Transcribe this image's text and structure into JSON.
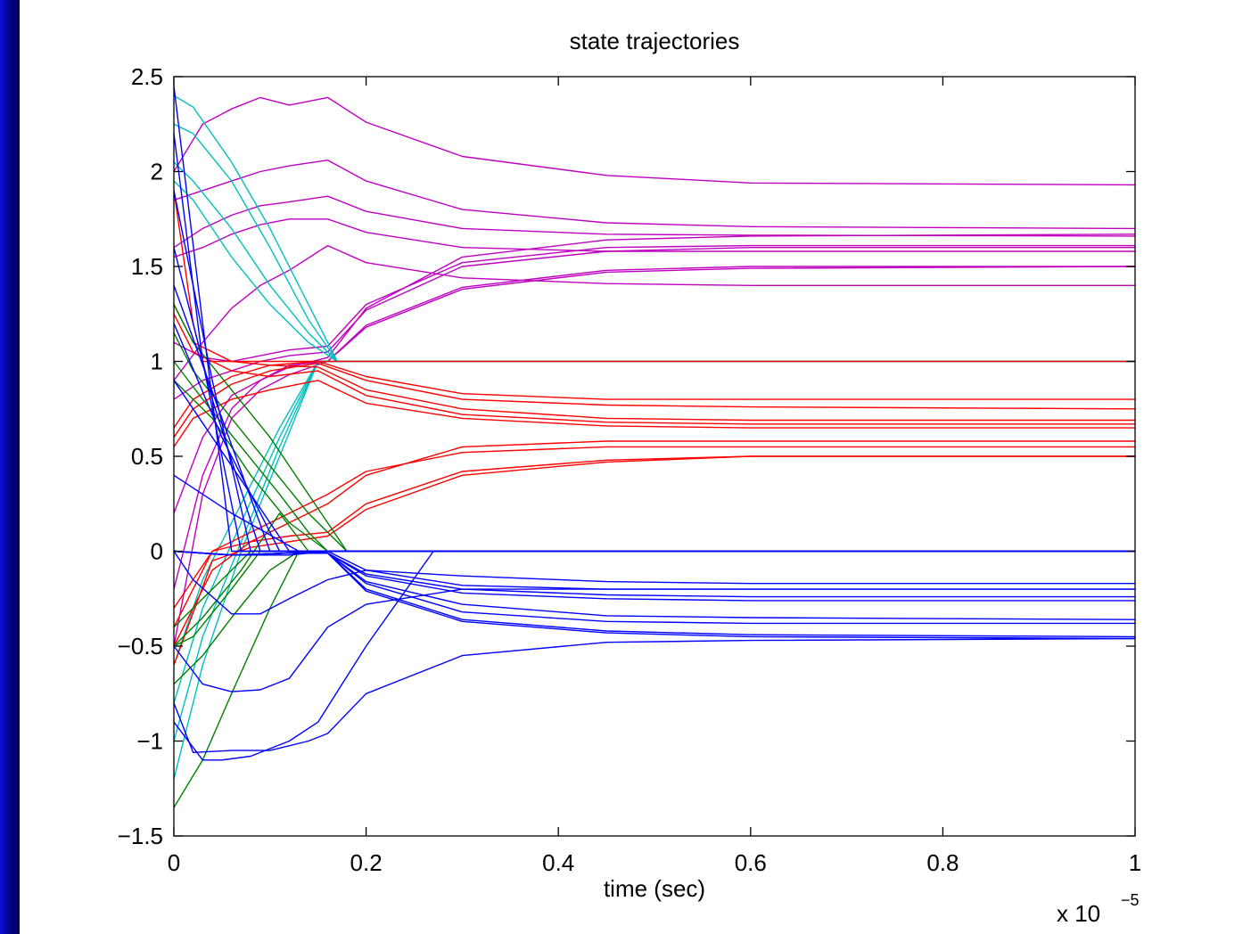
{
  "colors": {
    "background": "#ffffff",
    "slide_edge": "#00006a",
    "axes": "#000000",
    "magenta": "#bf00bf",
    "cyan": "#00bfbf",
    "red": "#ff0000",
    "green": "#007f00",
    "blue": "#0000ff"
  },
  "chart_data": {
    "type": "line",
    "title": "state trajectories",
    "xlabel": "time (sec)",
    "ylabel": "",
    "x_exponent_label": "x 10",
    "x_exponent_power": "−5",
    "xlim": [
      0,
      1
    ],
    "ylim": [
      -1.5,
      2.5
    ],
    "xticks": [
      0,
      0.2,
      0.4,
      0.6,
      0.8,
      1
    ],
    "xtick_labels": [
      "0",
      "0.2",
      "0.4",
      "0.6",
      "0.8",
      "1"
    ],
    "yticks": [
      -1.5,
      -1,
      -0.5,
      0,
      0.5,
      1,
      1.5,
      2,
      2.5
    ],
    "ytick_labels": [
      "−1.5",
      "−1",
      "−0.5",
      "0",
      "0.5",
      "1",
      "1.5",
      "2",
      "2.5"
    ],
    "grid": false,
    "legend": "none",
    "series": [
      {
        "color": "magenta",
        "x": [
          0,
          0.03,
          0.06,
          0.09,
          0.12,
          0.16,
          0.2,
          0.3,
          0.45,
          0.6,
          1
        ],
        "y": [
          2.0,
          2.25,
          2.33,
          2.39,
          2.35,
          2.39,
          2.26,
          2.08,
          1.98,
          1.94,
          1.93
        ]
      },
      {
        "color": "magenta",
        "x": [
          0,
          0.03,
          0.06,
          0.09,
          0.12,
          0.16,
          0.2,
          0.3,
          0.45,
          0.6,
          1
        ],
        "y": [
          1.85,
          1.9,
          1.95,
          2.0,
          2.03,
          2.06,
          1.95,
          1.8,
          1.73,
          1.71,
          1.7
        ]
      },
      {
        "color": "magenta",
        "x": [
          0,
          0.03,
          0.06,
          0.09,
          0.12,
          0.16,
          0.2,
          0.3,
          0.45,
          0.6,
          1
        ],
        "y": [
          1.6,
          1.7,
          1.77,
          1.82,
          1.84,
          1.87,
          1.79,
          1.7,
          1.67,
          1.665,
          1.66
        ]
      },
      {
        "color": "magenta",
        "x": [
          0,
          0.03,
          0.06,
          0.09,
          0.12,
          0.16,
          0.2,
          0.3,
          0.45,
          0.6,
          1
        ],
        "y": [
          1.55,
          1.6,
          1.67,
          1.72,
          1.75,
          1.75,
          1.68,
          1.6,
          1.58,
          1.58,
          1.58
        ]
      },
      {
        "color": "magenta",
        "x": [
          0,
          0.03,
          0.06,
          0.09,
          0.12,
          0.16,
          0.2,
          0.3,
          0.45,
          0.6,
          1
        ],
        "y": [
          0.9,
          1.1,
          1.28,
          1.4,
          1.48,
          1.61,
          1.52,
          1.44,
          1.41,
          1.4,
          1.4
        ]
      },
      {
        "color": "magenta",
        "x": [
          0,
          0.03,
          0.06,
          0.09,
          0.12,
          0.16,
          0.2,
          0.3,
          0.45,
          0.6,
          1
        ],
        "y": [
          1.1,
          1.02,
          1.0,
          1.03,
          1.06,
          1.08,
          1.3,
          1.52,
          1.6,
          1.61,
          1.61
        ]
      },
      {
        "color": "magenta",
        "x": [
          0,
          0.03,
          0.06,
          0.09,
          0.12,
          0.16,
          0.2,
          0.3,
          0.45,
          0.6,
          1
        ],
        "y": [
          0.8,
          0.9,
          0.95,
          1.0,
          1.03,
          1.05,
          1.27,
          1.5,
          1.58,
          1.6,
          1.6
        ]
      },
      {
        "color": "magenta",
        "x": [
          0,
          0.03,
          0.06,
          0.09,
          0.12,
          0.16,
          0.2,
          0.3,
          0.45,
          0.6,
          1
        ],
        "y": [
          0.2,
          0.6,
          0.82,
          0.9,
          0.97,
          1.02,
          1.28,
          1.55,
          1.64,
          1.66,
          1.67
        ]
      },
      {
        "color": "magenta",
        "x": [
          0,
          0.03,
          0.06,
          0.09,
          0.12,
          0.16,
          0.2,
          0.3,
          0.45,
          0.6,
          1
        ],
        "y": [
          -0.5,
          0.3,
          0.7,
          0.85,
          0.93,
          1.0,
          1.18,
          1.38,
          1.47,
          1.49,
          1.5
        ]
      },
      {
        "color": "magenta",
        "x": [
          0,
          0.03,
          0.06,
          0.09,
          0.12,
          0.16,
          0.2,
          0.3,
          0.45,
          0.6,
          1
        ],
        "y": [
          -0.2,
          0.4,
          0.75,
          0.9,
          0.98,
          1.0,
          1.19,
          1.39,
          1.48,
          1.5,
          1.5
        ]
      },
      {
        "color": "cyan",
        "x": [
          0,
          0.02,
          0.06,
          0.1,
          0.14,
          0.17,
          1
        ],
        "y": [
          2.4,
          2.34,
          2.05,
          1.7,
          1.3,
          1.0,
          1.0
        ]
      },
      {
        "color": "cyan",
        "x": [
          0,
          0.02,
          0.06,
          0.1,
          0.14,
          0.17,
          1
        ],
        "y": [
          2.25,
          2.2,
          1.95,
          1.6,
          1.22,
          1.0,
          1.0
        ]
      },
      {
        "color": "cyan",
        "x": [
          0,
          0.02,
          0.06,
          0.1,
          0.14,
          0.17,
          1
        ],
        "y": [
          2.05,
          1.95,
          1.7,
          1.4,
          1.15,
          1.0,
          1.0
        ]
      },
      {
        "color": "cyan",
        "x": [
          0,
          0.02,
          0.06,
          0.1,
          0.14,
          0.17,
          1
        ],
        "y": [
          1.95,
          1.85,
          1.55,
          1.3,
          1.1,
          1.0,
          1.0
        ]
      },
      {
        "color": "cyan",
        "x": [
          0,
          0.03,
          0.07,
          0.11,
          0.15,
          1
        ],
        "y": [
          -1.2,
          -0.6,
          0.0,
          0.5,
          1.0,
          1.0
        ]
      },
      {
        "color": "cyan",
        "x": [
          0,
          0.03,
          0.07,
          0.11,
          0.15,
          1
        ],
        "y": [
          -1.0,
          -0.45,
          0.05,
          0.55,
          1.0,
          1.0
        ]
      },
      {
        "color": "cyan",
        "x": [
          0,
          0.03,
          0.07,
          0.11,
          0.15,
          1
        ],
        "y": [
          -0.8,
          -0.3,
          0.15,
          0.6,
          1.0,
          1.0
        ]
      },
      {
        "color": "cyan",
        "x": [
          0,
          0.03,
          0.07,
          0.11,
          0.15,
          1
        ],
        "y": [
          -0.6,
          -0.15,
          0.25,
          0.65,
          1.0,
          1.0
        ]
      },
      {
        "color": "red",
        "x": [
          0,
          0.02,
          0.03,
          1
        ],
        "y": [
          1.9,
          1.2,
          1.0,
          1.0
        ]
      },
      {
        "color": "red",
        "x": [
          0,
          0.02,
          0.06,
          0.1,
          0.15,
          0.2,
          0.3,
          0.45,
          0.6,
          1
        ],
        "y": [
          0.65,
          0.8,
          0.92,
          0.98,
          1.0,
          0.92,
          0.83,
          0.8,
          0.8,
          0.8
        ]
      },
      {
        "color": "red",
        "x": [
          0,
          0.02,
          0.06,
          0.1,
          0.15,
          0.2,
          0.3,
          0.45,
          0.6,
          1
        ],
        "y": [
          0.6,
          0.75,
          0.88,
          0.95,
          0.99,
          0.9,
          0.8,
          0.77,
          0.76,
          0.75
        ]
      },
      {
        "color": "red",
        "x": [
          0,
          0.02,
          0.06,
          0.1,
          0.15,
          0.2,
          0.3,
          0.45,
          0.6,
          1
        ],
        "y": [
          1.3,
          1.1,
          1.0,
          0.98,
          0.97,
          0.85,
          0.75,
          0.7,
          0.69,
          0.69
        ]
      },
      {
        "color": "red",
        "x": [
          0,
          0.02,
          0.06,
          0.1,
          0.15,
          0.2,
          0.3,
          0.45,
          0.6,
          1
        ],
        "y": [
          1.25,
          1.05,
          0.95,
          0.92,
          0.95,
          0.82,
          0.72,
          0.68,
          0.67,
          0.67
        ]
      },
      {
        "color": "red",
        "x": [
          0,
          0.02,
          0.06,
          0.1,
          0.15,
          0.2,
          0.3,
          0.45,
          0.6,
          1
        ],
        "y": [
          0.55,
          0.7,
          0.8,
          0.85,
          0.9,
          0.78,
          0.7,
          0.66,
          0.65,
          0.65
        ]
      },
      {
        "color": "red",
        "x": [
          0,
          0.04,
          0.08,
          0.12,
          0.16,
          0.2,
          0.3,
          0.45,
          0.6,
          1
        ],
        "y": [
          -0.5,
          -0.1,
          0.05,
          0.15,
          0.25,
          0.4,
          0.55,
          0.58,
          0.58,
          0.58
        ]
      },
      {
        "color": "red",
        "x": [
          0,
          0.04,
          0.08,
          0.12,
          0.16,
          0.2,
          0.3,
          0.45,
          0.6,
          1
        ],
        "y": [
          -0.4,
          0.0,
          0.1,
          0.2,
          0.3,
          0.42,
          0.52,
          0.55,
          0.55,
          0.55
        ]
      },
      {
        "color": "red",
        "x": [
          0,
          0.04,
          0.08,
          0.12,
          0.16,
          0.2,
          0.3,
          0.45,
          0.6,
          1
        ],
        "y": [
          -0.3,
          0.0,
          0.05,
          0.08,
          0.1,
          0.25,
          0.42,
          0.48,
          0.5,
          0.5
        ]
      },
      {
        "color": "red",
        "x": [
          0,
          0.04,
          0.08,
          0.12,
          0.16,
          0.2,
          0.3,
          0.45,
          0.6,
          1
        ],
        "y": [
          -0.6,
          -0.05,
          0.02,
          0.05,
          0.08,
          0.22,
          0.4,
          0.47,
          0.5,
          0.5
        ]
      },
      {
        "color": "green",
        "x": [
          0,
          0.02,
          0.06,
          0.1,
          0.14,
          0.18,
          1
        ],
        "y": [
          1.3,
          1.1,
          0.85,
          0.6,
          0.3,
          0.0,
          0.0
        ]
      },
      {
        "color": "green",
        "x": [
          0,
          0.02,
          0.06,
          0.1,
          0.14,
          0.18,
          1
        ],
        "y": [
          1.15,
          0.95,
          0.7,
          0.45,
          0.2,
          0.0,
          0.0
        ]
      },
      {
        "color": "green",
        "x": [
          0,
          0.03,
          0.07,
          0.11,
          0.14,
          0.16,
          1
        ],
        "y": [
          1.0,
          0.8,
          0.55,
          0.3,
          0.1,
          0.0,
          0.0
        ]
      },
      {
        "color": "green",
        "x": [
          0,
          0.04,
          0.08,
          0.12,
          0.16,
          1
        ],
        "y": [
          0.9,
          0.7,
          0.4,
          0.15,
          0.0,
          0.0
        ]
      },
      {
        "color": "green",
        "x": [
          0,
          0.03,
          0.07,
          0.11,
          0.14,
          1
        ],
        "y": [
          -0.5,
          -0.35,
          -0.1,
          0.2,
          0.0,
          0.0
        ]
      },
      {
        "color": "green",
        "x": [
          0,
          0.02,
          0.06,
          0.09,
          0.12,
          1
        ],
        "y": [
          -0.5,
          -0.45,
          -0.2,
          0.0,
          0.0,
          0.0
        ]
      },
      {
        "color": "green",
        "x": [
          0,
          0.03,
          0.06,
          0.08,
          1
        ],
        "y": [
          -0.4,
          -0.25,
          -0.1,
          0.0,
          0.0
        ]
      },
      {
        "color": "green",
        "x": [
          0,
          0.03,
          0.06,
          0.1,
          0.13,
          1
        ],
        "y": [
          -1.35,
          -1.1,
          -0.75,
          -0.3,
          0.0,
          0.0
        ]
      },
      {
        "color": "green",
        "x": [
          0,
          0.03,
          0.06,
          0.1,
          0.13,
          1
        ],
        "y": [
          -0.7,
          -0.55,
          -0.35,
          -0.1,
          0.0,
          0.0
        ]
      },
      {
        "color": "blue",
        "x": [
          0,
          0.03,
          0.06,
          1
        ],
        "y": [
          2.45,
          1.2,
          0.0,
          0.0
        ]
      },
      {
        "color": "blue",
        "x": [
          0,
          0.03,
          0.07,
          1
        ],
        "y": [
          2.2,
          1.0,
          0.0,
          0.0
        ]
      },
      {
        "color": "blue",
        "x": [
          0,
          0.04,
          0.08,
          1
        ],
        "y": [
          1.9,
          0.9,
          0.0,
          0.0
        ]
      },
      {
        "color": "blue",
        "x": [
          0,
          0.04,
          0.09,
          1
        ],
        "y": [
          1.6,
          0.8,
          0.0,
          0.0
        ]
      },
      {
        "color": "blue",
        "x": [
          0,
          0.05,
          0.1,
          1
        ],
        "y": [
          1.4,
          0.7,
          0.0,
          0.0
        ]
      },
      {
        "color": "blue",
        "x": [
          0,
          0.05,
          0.11,
          1
        ],
        "y": [
          1.2,
          0.6,
          0.0,
          0.0
        ]
      },
      {
        "color": "blue",
        "x": [
          0,
          0.06,
          0.12,
          1
        ],
        "y": [
          0.9,
          0.45,
          0.0,
          0.0
        ]
      },
      {
        "color": "blue",
        "x": [
          0,
          0.06,
          0.13,
          1
        ],
        "y": [
          0.4,
          0.2,
          0.0,
          0.0
        ]
      },
      {
        "color": "blue",
        "x": [
          0,
          0.02,
          0.06,
          0.09,
          0.12,
          0.16,
          0.2,
          0.3,
          0.45,
          0.6,
          1
        ],
        "y": [
          0.0,
          -0.15,
          -0.33,
          -0.33,
          -0.25,
          -0.15,
          -0.1,
          -0.13,
          -0.16,
          -0.17,
          -0.17
        ]
      },
      {
        "color": "blue",
        "x": [
          0,
          0.06,
          0.12,
          0.16,
          0.2,
          0.3,
          0.45,
          0.6,
          1
        ],
        "y": [
          0.0,
          -0.02,
          -0.02,
          0.0,
          -0.1,
          -0.18,
          -0.2,
          -0.2,
          -0.2
        ]
      },
      {
        "color": "blue",
        "x": [
          0,
          0.06,
          0.12,
          0.16,
          0.2,
          0.3,
          0.45,
          0.6,
          1
        ],
        "y": [
          0.0,
          -0.02,
          -0.01,
          -0.01,
          -0.12,
          -0.2,
          -0.23,
          -0.24,
          -0.24
        ]
      },
      {
        "color": "blue",
        "x": [
          0,
          0.06,
          0.12,
          0.16,
          0.2,
          0.3,
          0.45,
          0.6,
          1
        ],
        "y": [
          0.0,
          -0.02,
          -0.01,
          -0.01,
          -0.13,
          -0.22,
          -0.25,
          -0.26,
          -0.26
        ]
      },
      {
        "color": "blue",
        "x": [
          0,
          0.06,
          0.12,
          0.16,
          0.2,
          0.3,
          0.45,
          0.6,
          1
        ],
        "y": [
          0.0,
          -0.02,
          -0.01,
          -0.01,
          -0.16,
          -0.28,
          -0.34,
          -0.35,
          -0.36
        ]
      },
      {
        "color": "blue",
        "x": [
          0,
          0.06,
          0.12,
          0.16,
          0.2,
          0.3,
          0.45,
          0.6,
          1
        ],
        "y": [
          0.0,
          -0.02,
          -0.01,
          -0.01,
          -0.17,
          -0.32,
          -0.37,
          -0.38,
          -0.38
        ]
      },
      {
        "color": "blue",
        "x": [
          0,
          0.06,
          0.12,
          0.16,
          0.2,
          0.3,
          0.45,
          0.6,
          1
        ],
        "y": [
          0.0,
          -0.02,
          -0.01,
          -0.01,
          -0.2,
          -0.36,
          -0.42,
          -0.44,
          -0.45
        ]
      },
      {
        "color": "blue",
        "x": [
          0,
          0.06,
          0.12,
          0.16,
          0.2,
          0.3,
          0.45,
          0.6,
          1
        ],
        "y": [
          0.0,
          -0.02,
          -0.01,
          -0.01,
          -0.21,
          -0.37,
          -0.43,
          -0.45,
          -0.46
        ]
      },
      {
        "color": "blue",
        "x": [
          0,
          0.03,
          0.06,
          0.09,
          0.12,
          0.16,
          0.2,
          0.3,
          0.45,
          0.6,
          1
        ],
        "y": [
          -0.5,
          -0.7,
          -0.74,
          -0.73,
          -0.67,
          -0.4,
          -0.28,
          -0.2,
          -0.2,
          -0.2,
          -0.2
        ]
      },
      {
        "color": "blue",
        "x": [
          0,
          0.03,
          0.05,
          0.08,
          0.12,
          0.15,
          0.2,
          0.27,
          1
        ],
        "y": [
          -0.9,
          -1.1,
          -1.1,
          -1.08,
          -1.0,
          -0.9,
          -0.5,
          0.0,
          0.0
        ]
      },
      {
        "color": "blue",
        "x": [
          0,
          0.02,
          0.06,
          0.1,
          0.14,
          0.16,
          0.2,
          0.3,
          0.45,
          0.6,
          1
        ],
        "y": [
          -0.8,
          -1.06,
          -1.05,
          -1.05,
          -1.0,
          -0.96,
          -0.75,
          -0.55,
          -0.48,
          -0.47,
          -0.46
        ]
      }
    ]
  }
}
